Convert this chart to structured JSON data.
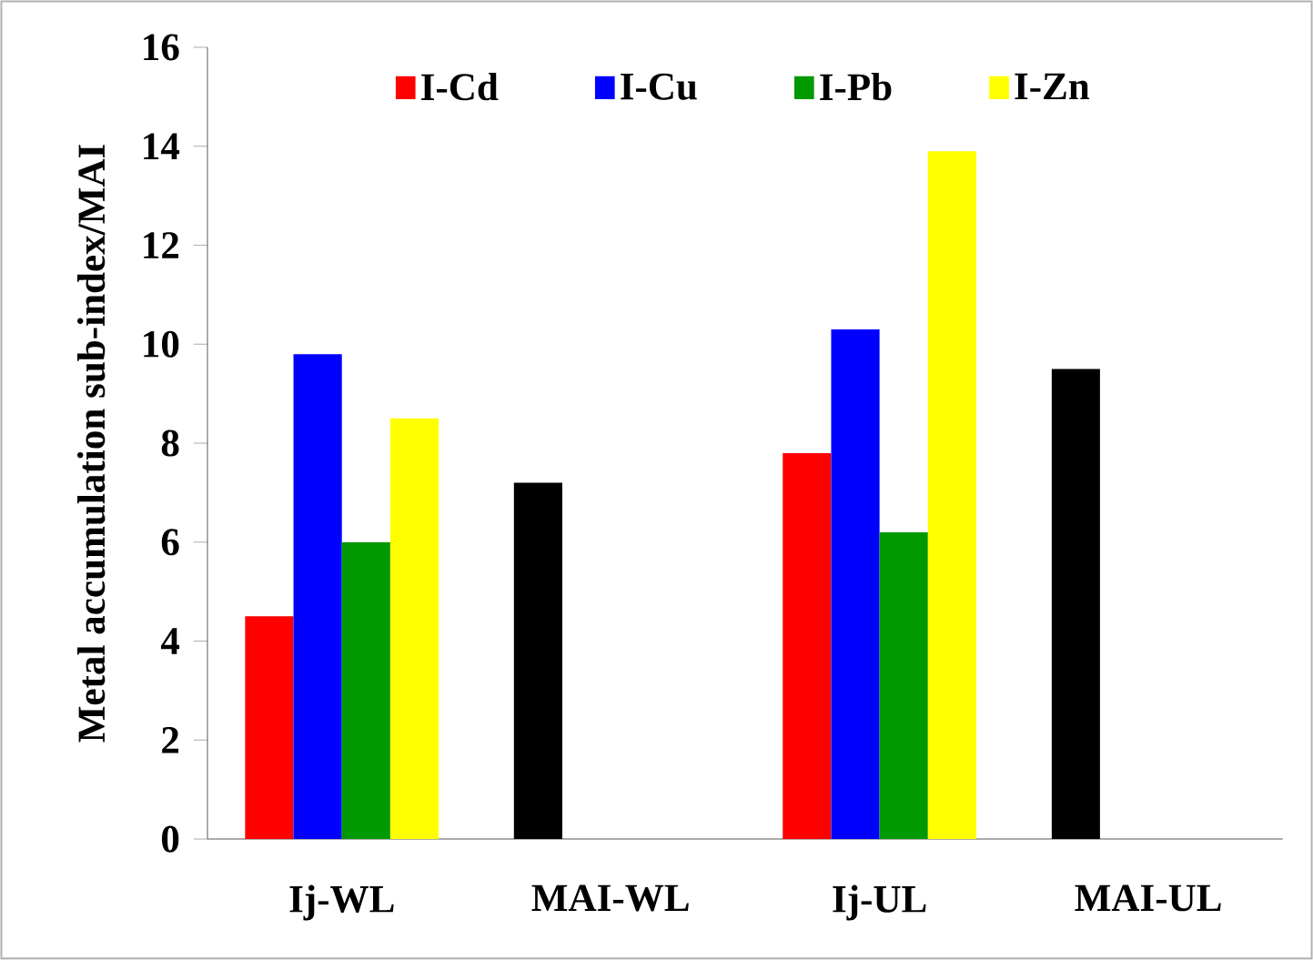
{
  "chart_data": {
    "type": "bar",
    "ylabel": "Metal accumulation sub-index/MAI",
    "categories": [
      "Ij-WL",
      "MAI-WL",
      "Ij-UL",
      "MAI-UL"
    ],
    "series": [
      {
        "name": "I-Cd",
        "color": "#ff0000",
        "colors": [
          "#ff0000",
          "#000000",
          "#ff0000",
          "#000000"
        ],
        "values": [
          4.5,
          7.2,
          7.8,
          9.5
        ]
      },
      {
        "name": "I-Cu",
        "color": "#0000ff",
        "values": [
          9.8,
          null,
          10.3,
          null
        ]
      },
      {
        "name": "I-Pb",
        "color": "#009900",
        "values": [
          6.0,
          null,
          6.2,
          null
        ]
      },
      {
        "name": "I-Zn",
        "color": "#ffff00",
        "values": [
          8.5,
          null,
          13.9,
          null
        ]
      }
    ],
    "ylim": [
      0,
      16
    ],
    "yticks": [
      0,
      2,
      4,
      6,
      8,
      10,
      12,
      14,
      16
    ],
    "legend": "top",
    "grid": false
  }
}
